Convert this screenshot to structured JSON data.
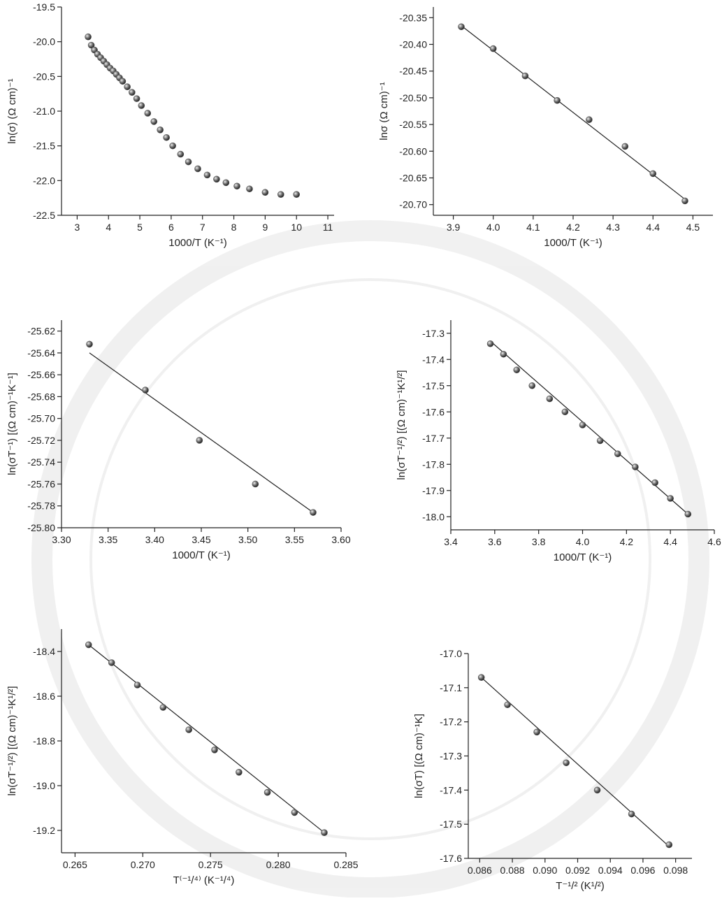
{
  "chart_data": [
    {
      "type": "scatter",
      "x_label": "1000/T (K⁻¹)",
      "y_label": "ln(σ) (Ω cm)⁻¹",
      "color": "#555555",
      "x": [
        3.35,
        3.45,
        3.55,
        3.65,
        3.75,
        3.85,
        3.95,
        4.05,
        4.15,
        4.25,
        4.35,
        4.45,
        4.6,
        4.75,
        4.9,
        5.05,
        5.25,
        5.45,
        5.65,
        5.85,
        6.05,
        6.3,
        6.55,
        6.85,
        7.15,
        7.45,
        7.75,
        8.1,
        8.5,
        9.0,
        9.5,
        10.0
      ],
      "values": [
        -19.93,
        -20.05,
        -20.12,
        -20.18,
        -20.23,
        -20.28,
        -20.33,
        -20.38,
        -20.42,
        -20.47,
        -20.52,
        -20.57,
        -20.65,
        -20.73,
        -20.82,
        -20.92,
        -21.03,
        -21.15,
        -21.27,
        -21.38,
        -21.5,
        -21.62,
        -21.73,
        -21.83,
        -21.92,
        -21.98,
        -22.03,
        -22.08,
        -22.12,
        -22.17,
        -22.2,
        -22.2
      ],
      "xlim": [
        2.5,
        11.2
      ],
      "xticks": [
        3,
        4,
        5,
        6,
        7,
        8,
        9,
        10,
        11
      ],
      "ylim": [
        -22.5,
        -19.5
      ],
      "yticks": [
        -22.5,
        {
          "value": -22,
          "label": "-22.0"
        },
        -21.5,
        {
          "value": -21,
          "label": "-21.0"
        },
        -20.5,
        {
          "value": -20,
          "label": "-20.0"
        },
        -19.5
      ]
    },
    {
      "type": "scatter",
      "x_label": "1000/T (K⁻¹)",
      "y_label": "lnσ (Ω cm)⁻¹",
      "color": "#555555",
      "x": [
        3.92,
        4.0,
        4.08,
        4.16,
        4.24,
        4.33,
        4.4,
        4.48
      ],
      "values": [
        -20.367,
        -20.408,
        -20.459,
        -20.505,
        -20.541,
        -20.591,
        -20.642,
        -20.693
      ],
      "fit_x": [
        3.92,
        4.48
      ],
      "fit_y": [
        -20.365,
        -20.69
      ],
      "xlim": [
        3.85,
        4.55
      ],
      "xticks": [
        3.9,
        {
          "value": 4,
          "label": "4.0"
        },
        4.1,
        4.2,
        4.3,
        4.4,
        4.5
      ],
      "ylim": [
        -20.72,
        -20.33
      ],
      "yticks": [
        {
          "value": -20.7,
          "label": "-20.70"
        },
        -20.65,
        {
          "value": -20.6,
          "label": "-20.60"
        },
        -20.55,
        {
          "value": -20.5,
          "label": "-20.50"
        },
        -20.45,
        {
          "value": -20.4,
          "label": "-20.40"
        },
        -20.35
      ]
    },
    {
      "type": "scatter",
      "x_label": "1000/T (K⁻¹)",
      "y_label": "ln(σT⁻¹) [(Ω cm)⁻¹K⁻¹]",
      "color": "#555555",
      "x": [
        3.33,
        3.39,
        3.448,
        3.508,
        3.57
      ],
      "values": [
        -25.632,
        -25.674,
        -25.72,
        -25.76,
        -25.786
      ],
      "fit_x": [
        3.33,
        3.57
      ],
      "fit_y": [
        -25.64,
        -25.786
      ],
      "xlim": [
        3.3,
        3.6
      ],
      "xticks": [
        {
          "value": 3.3,
          "label": "3.30"
        },
        3.35,
        {
          "value": 3.4,
          "label": "3.40"
        },
        3.45,
        {
          "value": 3.5,
          "label": "3.50"
        },
        3.55,
        {
          "value": 3.6,
          "label": "3.60"
        }
      ],
      "ylim": [
        -25.8,
        -25.61
      ],
      "yticks": [
        {
          "value": -25.8,
          "label": "-25.80"
        },
        -25.78,
        -25.76,
        -25.74,
        -25.72,
        {
          "value": -25.7,
          "label": "-25.70"
        },
        -25.68,
        -25.66,
        -25.64,
        -25.62
      ]
    },
    {
      "type": "scatter",
      "x_label": "1000/T (K⁻¹)",
      "y_label": "ln(σT⁻¹/²) [(Ω cm)⁻¹K¹/²]",
      "color": "#555555",
      "x": [
        3.58,
        3.64,
        3.7,
        3.77,
        3.85,
        3.92,
        4.0,
        4.08,
        4.16,
        4.24,
        4.33,
        4.4,
        4.48
      ],
      "values": [
        -17.34,
        -17.38,
        -17.44,
        -17.5,
        -17.55,
        -17.6,
        -17.65,
        -17.71,
        -17.76,
        -17.81,
        -17.87,
        -17.93,
        -17.99
      ],
      "fit_x": [
        3.58,
        4.48
      ],
      "fit_y": [
        -17.33,
        -17.99
      ],
      "xlim": [
        3.4,
        4.6
      ],
      "xticks": [
        3.4,
        3.6,
        3.8,
        {
          "value": 4,
          "label": "4.0"
        },
        4.2,
        4.4,
        4.6
      ],
      "ylim": [
        -18.05,
        -17.25
      ],
      "yticks": [
        {
          "value": -18,
          "label": "-18.0"
        },
        -17.9,
        -17.8,
        -17.7,
        -17.6,
        -17.5,
        -17.4,
        -17.3
      ]
    },
    {
      "type": "scatter",
      "x_label": "T⁽⁻¹/⁴⁾ (K⁻¹/⁴)",
      "y_label": "ln(σT⁻¹/²) [(Ω cm)⁻¹K¹/²]",
      "color": "#555555",
      "x": [
        0.266,
        0.2677,
        0.2696,
        0.2715,
        0.2734,
        0.2753,
        0.2771,
        0.2792,
        0.2812,
        0.2834
      ],
      "values": [
        -18.37,
        -18.45,
        -18.55,
        -18.65,
        -18.75,
        -18.84,
        -18.94,
        -19.03,
        -19.12,
        -19.21
      ],
      "fit_x": [
        0.266,
        0.2834
      ],
      "fit_y": [
        -18.37,
        -19.21
      ],
      "xlim": [
        0.264,
        0.285
      ],
      "xticks": [
        0.265,
        {
          "value": 0.27,
          "label": "0.270"
        },
        0.275,
        {
          "value": 0.28,
          "label": "0.280"
        },
        0.285
      ],
      "ylim": [
        -19.3,
        -18.3
      ],
      "yticks": [
        -19.2,
        {
          "value": -19,
          "label": "-19.0"
        },
        -18.8,
        -18.6,
        -18.4
      ]
    },
    {
      "type": "scatter",
      "x_label": "T⁻¹/² (K¹/²)",
      "y_label": "ln(σT) [(Ω cm)⁻¹K]",
      "color": "#555555",
      "x": [
        0.0861,
        0.0877,
        0.0895,
        0.0913,
        0.0932,
        0.0953,
        0.0976
      ],
      "values": [
        -17.07,
        -17.15,
        -17.23,
        -17.32,
        -17.4,
        -17.47,
        -17.56
      ],
      "fit_x": [
        0.0861,
        0.0976
      ],
      "fit_y": [
        -17.07,
        -17.565
      ],
      "xlim": [
        0.0853,
        0.099
      ],
      "xticks": [
        0.086,
        0.088,
        {
          "value": 0.09,
          "label": "0.090"
        },
        0.092,
        0.094,
        0.096,
        0.098
      ],
      "ylim": [
        -17.6,
        -17.0
      ],
      "yticks": [
        -17.6,
        -17.5,
        -17.4,
        -17.3,
        -17.2,
        -17.1,
        {
          "value": -17,
          "label": "-17.0"
        }
      ]
    }
  ]
}
